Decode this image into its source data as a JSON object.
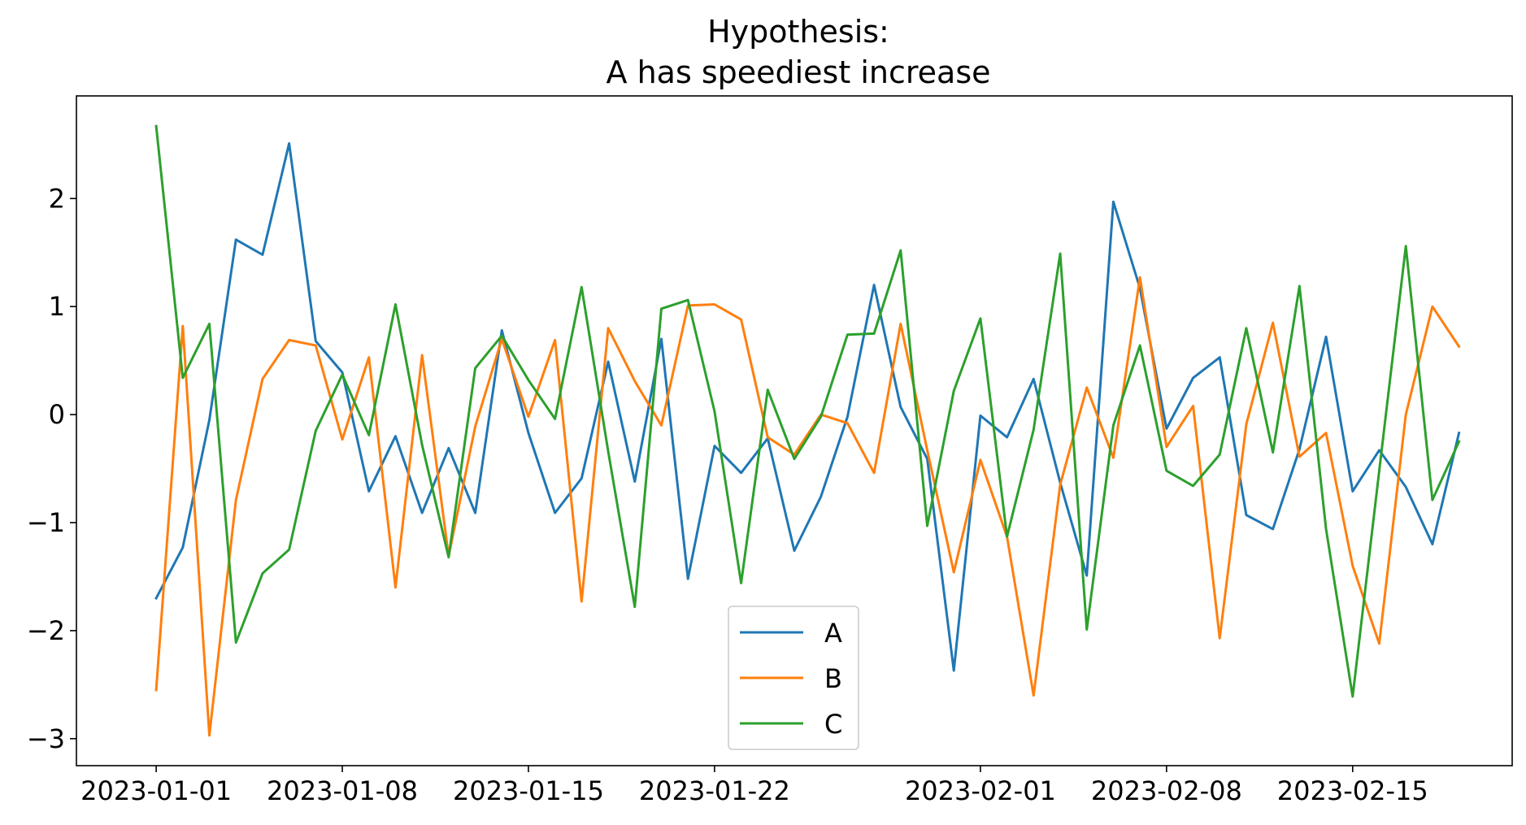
{
  "chart_data": {
    "type": "line",
    "title": "Hypothesis:\nA has speediest increase",
    "xlabel": "",
    "ylabel": "",
    "x": [
      "2023-01-01",
      "2023-01-02",
      "2023-01-03",
      "2023-01-04",
      "2023-01-05",
      "2023-01-06",
      "2023-01-07",
      "2023-01-08",
      "2023-01-09",
      "2023-01-10",
      "2023-01-11",
      "2023-01-12",
      "2023-01-13",
      "2023-01-14",
      "2023-01-15",
      "2023-01-16",
      "2023-01-17",
      "2023-01-18",
      "2023-01-19",
      "2023-01-20",
      "2023-01-21",
      "2023-01-22",
      "2023-01-23",
      "2023-01-24",
      "2023-01-25",
      "2023-01-26",
      "2023-01-27",
      "2023-01-28",
      "2023-01-29",
      "2023-01-30",
      "2023-01-31",
      "2023-02-01",
      "2023-02-02",
      "2023-02-03",
      "2023-02-04",
      "2023-02-05",
      "2023-02-06",
      "2023-02-07",
      "2023-02-08",
      "2023-02-09",
      "2023-02-10",
      "2023-02-11",
      "2023-02-12",
      "2023-02-13",
      "2023-02-14",
      "2023-02-15",
      "2023-02-16",
      "2023-02-17",
      "2023-02-18",
      "2023-02-19"
    ],
    "series": [
      {
        "name": "A",
        "color": "#1f77b4",
        "values": [
          -1.7,
          -1.23,
          -0.05,
          1.62,
          1.48,
          2.51,
          0.68,
          0.39,
          -0.71,
          -0.2,
          -0.91,
          -0.31,
          -0.91,
          0.78,
          -0.17,
          -0.91,
          -0.59,
          0.49,
          -0.62,
          0.7,
          -1.52,
          -0.29,
          -0.54,
          -0.22,
          -1.26,
          -0.76,
          -0.02,
          1.2,
          0.07,
          -0.41,
          -2.37,
          -0.01,
          -0.21,
          0.33,
          -0.63,
          -1.49,
          1.97,
          1.17,
          -0.13,
          0.34,
          0.53,
          -0.93,
          -1.06,
          -0.32,
          0.72,
          -0.71,
          -0.33,
          -0.67,
          -1.2,
          -0.17
        ]
      },
      {
        "name": "B",
        "color": "#ff7f0e",
        "values": [
          -2.55,
          0.82,
          -2.97,
          -0.79,
          0.33,
          0.69,
          0.64,
          -0.23,
          0.53,
          -1.6,
          0.55,
          -1.31,
          -0.11,
          0.7,
          -0.02,
          0.69,
          -1.73,
          0.8,
          0.31,
          -0.1,
          1.01,
          1.02,
          0.88,
          -0.21,
          -0.37,
          -0.0,
          -0.08,
          -0.54,
          0.84,
          -0.33,
          -1.46,
          -0.42,
          -1.13,
          -2.6,
          -0.65,
          0.25,
          -0.4,
          1.27,
          -0.3,
          0.08,
          -2.07,
          -0.09,
          0.85,
          -0.39,
          -0.17,
          -1.4,
          -2.12,
          0.0,
          1.0,
          0.63
        ]
      },
      {
        "name": "C",
        "color": "#2ca02c",
        "values": [
          2.67,
          0.34,
          0.84,
          -2.11,
          -1.47,
          -1.25,
          -0.15,
          0.37,
          -0.19,
          1.02,
          -0.28,
          -1.32,
          0.43,
          0.73,
          0.32,
          -0.04,
          1.18,
          -0.34,
          -1.78,
          0.98,
          1.06,
          0.03,
          -1.56,
          0.23,
          -0.41,
          -0.02,
          0.74,
          0.75,
          1.52,
          -1.03,
          0.22,
          0.89,
          -1.13,
          -0.14,
          1.49,
          -1.99,
          -0.1,
          0.64,
          -0.52,
          -0.66,
          -0.37,
          0.8,
          -0.35,
          1.19,
          -1.06,
          -2.61,
          -0.52,
          1.56,
          -0.79,
          -0.25
        ]
      }
    ],
    "x_ticks": [
      "2023-01-01",
      "2023-01-08",
      "2023-01-15",
      "2023-01-22",
      "2023-02-01",
      "2023-02-08",
      "2023-02-15"
    ],
    "y_ticks": [
      2,
      1,
      0,
      -1,
      -2,
      -3
    ],
    "y_tick_labels": [
      "2",
      "1",
      "0",
      "−1",
      "−2",
      "−3"
    ],
    "xlim": [
      "2022-12-29",
      "2023-02-21"
    ],
    "ylim": [
      -3.25,
      2.95
    ],
    "grid": false,
    "legend_position": "bottom-center"
  }
}
